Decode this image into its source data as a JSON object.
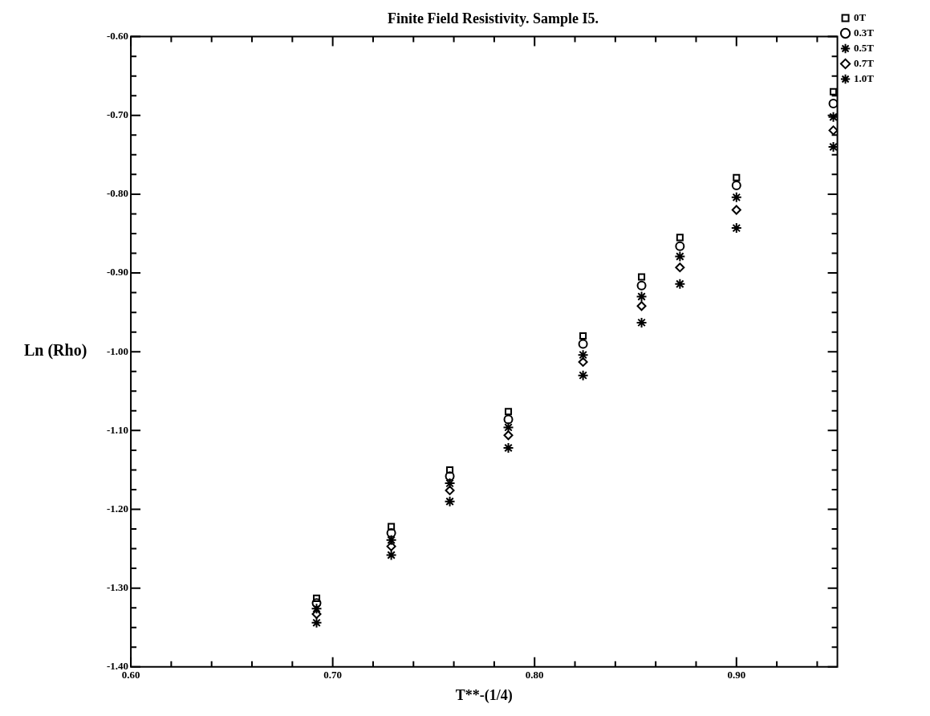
{
  "chart_data": {
    "type": "scatter",
    "title": "Finite Field Resistivity. Sample I5.",
    "xlabel": "T**-(1/4)",
    "ylabel": "Ln (Rho)",
    "x": [
      0.692,
      0.729,
      0.758,
      0.787,
      0.824,
      0.853,
      0.872,
      0.9,
      0.948
    ],
    "series": [
      {
        "name": "0T",
        "color": "#000000",
        "marker": "square",
        "values": [
          -1.313,
          -1.222,
          -1.15,
          -1.076,
          -0.98,
          -0.905,
          -0.855,
          -0.779,
          -0.67
        ]
      },
      {
        "name": "0.3T",
        "color": "#000000",
        "marker": "circle",
        "values": [
          -1.319,
          -1.23,
          -1.158,
          -1.086,
          -0.99,
          -0.916,
          -0.866,
          -0.789,
          -0.685
        ]
      },
      {
        "name": "0.5T",
        "color": "#000000",
        "marker": "cross",
        "values": [
          -1.326,
          -1.239,
          -1.167,
          -1.096,
          -1.004,
          -0.93,
          -0.879,
          -0.804,
          -0.702
        ]
      },
      {
        "name": "0.7T",
        "color": "#000000",
        "marker": "diamond",
        "values": [
          -1.333,
          -1.247,
          -1.176,
          -1.106,
          -1.013,
          -0.942,
          -0.893,
          -0.82,
          -0.719
        ]
      },
      {
        "name": "1.0T",
        "color": "#000000",
        "marker": "cross",
        "values": [
          -1.344,
          -1.258,
          -1.19,
          -1.122,
          -1.03,
          -0.963,
          -0.914,
          -0.843,
          -0.74
        ]
      }
    ],
    "xlim": [
      0.6,
      0.95
    ],
    "ylim": [
      -1.4,
      -0.6
    ],
    "xticks": [
      {
        "value": 0.6,
        "label": "0.60"
      },
      {
        "value": 0.62,
        "label": null
      },
      {
        "value": 0.64,
        "label": null
      },
      {
        "value": 0.66,
        "label": null
      },
      {
        "value": 0.68,
        "label": null
      },
      {
        "value": 0.7,
        "label": "0.70"
      },
      {
        "value": 0.72,
        "label": null
      },
      {
        "value": 0.74,
        "label": null
      },
      {
        "value": 0.76,
        "label": null
      },
      {
        "value": 0.78,
        "label": null
      },
      {
        "value": 0.8,
        "label": "0.80"
      },
      {
        "value": 0.82,
        "label": null
      },
      {
        "value": 0.84,
        "label": null
      },
      {
        "value": 0.86,
        "label": null
      },
      {
        "value": 0.88,
        "label": null
      },
      {
        "value": 0.9,
        "label": "0.90"
      },
      {
        "value": 0.92,
        "label": null
      },
      {
        "value": 0.94,
        "label": null
      }
    ],
    "yticks": [
      {
        "value": -1.4,
        "label": "-1.40"
      },
      {
        "value": -1.375,
        "label": null
      },
      {
        "value": -1.35,
        "label": null
      },
      {
        "value": -1.325,
        "label": null
      },
      {
        "value": -1.3,
        "label": "-1.30"
      },
      {
        "value": -1.275,
        "label": null
      },
      {
        "value": -1.25,
        "label": null
      },
      {
        "value": -1.225,
        "label": null
      },
      {
        "value": -1.2,
        "label": "-1.20"
      },
      {
        "value": -1.175,
        "label": null
      },
      {
        "value": -1.15,
        "label": null
      },
      {
        "value": -1.125,
        "label": null
      },
      {
        "value": -1.1,
        "label": "-1.10"
      },
      {
        "value": -1.075,
        "label": null
      },
      {
        "value": -1.05,
        "label": null
      },
      {
        "value": -1.025,
        "label": null
      },
      {
        "value": -1.0,
        "label": "-1.00"
      },
      {
        "value": -0.975,
        "label": null
      },
      {
        "value": -0.95,
        "label": null
      },
      {
        "value": -0.925,
        "label": null
      },
      {
        "value": -0.9,
        "label": "-0.90"
      },
      {
        "value": -0.875,
        "label": null
      },
      {
        "value": -0.85,
        "label": null
      },
      {
        "value": -0.825,
        "label": null
      },
      {
        "value": -0.8,
        "label": "-0.80"
      },
      {
        "value": -0.775,
        "label": null
      },
      {
        "value": -0.75,
        "label": null
      },
      {
        "value": -0.725,
        "label": null
      },
      {
        "value": -0.7,
        "label": "-0.70"
      },
      {
        "value": -0.675,
        "label": null
      },
      {
        "value": -0.65,
        "label": null
      },
      {
        "value": -0.625,
        "label": null
      },
      {
        "value": -0.6,
        "label": "-0.60"
      }
    ],
    "grid": false,
    "legend": "right"
  }
}
